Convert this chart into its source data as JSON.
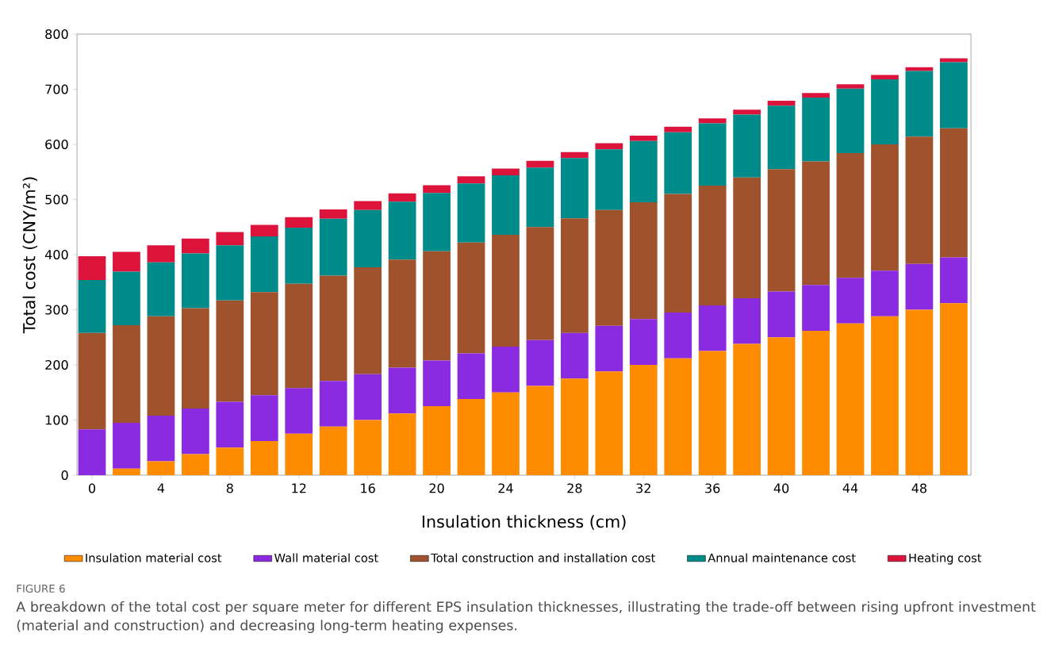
{
  "chart_data": {
    "type": "bar",
    "stacked": true,
    "xlabel": "Insulation thickness (cm)",
    "ylabel": "Total cost (CNY/m²)",
    "x": [
      0,
      2,
      4,
      6,
      8,
      10,
      12,
      14,
      16,
      18,
      20,
      22,
      24,
      26,
      28,
      30,
      32,
      34,
      36,
      38,
      40,
      42,
      44,
      46,
      48,
      50
    ],
    "xlim": [
      -0.87,
      51
    ],
    "xticks": [
      0,
      4,
      8,
      12,
      16,
      20,
      24,
      28,
      32,
      36,
      40,
      44,
      48
    ],
    "ylim": [
      0,
      800
    ],
    "yticks": [
      0,
      100,
      200,
      300,
      400,
      500,
      600,
      700,
      800
    ],
    "legend": "bottom",
    "grid": false,
    "series": [
      {
        "name": "Insulation material cost",
        "color": "#ff8c00",
        "values": [
          0,
          12,
          25,
          38,
          50,
          62,
          75,
          88,
          100,
          112,
          125,
          138,
          150,
          162,
          175,
          188,
          200,
          212,
          225,
          238,
          250,
          262,
          275,
          288,
          300,
          312
        ]
      },
      {
        "name": "Wall material cost",
        "color": "#8a2be2",
        "values": [
          83,
          83,
          83,
          83,
          83,
          83,
          83,
          83,
          83,
          83,
          83,
          83,
          83,
          83,
          83,
          83,
          83,
          83,
          83,
          83,
          83,
          83,
          83,
          83,
          83,
          83
        ]
      },
      {
        "name": "Total construction and installation cost",
        "color": "#a0522d",
        "values": [
          175,
          177,
          180,
          182,
          184,
          187,
          189,
          191,
          194,
          196,
          198,
          201,
          203,
          205,
          208,
          210,
          212,
          215,
          217,
          219,
          222,
          224,
          226,
          229,
          231,
          234
        ]
      },
      {
        "name": "Annual maintenance cost",
        "color": "#008b8b",
        "values": [
          96,
          97,
          98,
          99,
          100,
          101,
          102,
          103,
          104,
          105,
          106,
          107,
          108,
          108,
          109,
          110,
          111,
          112,
          113,
          114,
          115,
          116,
          117,
          118,
          119,
          120
        ]
      },
      {
        "name": "Heating cost",
        "color": "#dc143c",
        "values": [
          43,
          36,
          31,
          27,
          24,
          21,
          19,
          17,
          16,
          15,
          14,
          13,
          12,
          12,
          11,
          11,
          10,
          10,
          9,
          9,
          9,
          8,
          8,
          8,
          7,
          7
        ]
      }
    ],
    "annotations": [
      "FIGURE 6",
      "A breakdown of the total cost per square meter for different EPS insulation thicknesses, illustrating the trade-off between rising upfront investment (material and construction) and decreasing long-term heating expenses."
    ]
  }
}
